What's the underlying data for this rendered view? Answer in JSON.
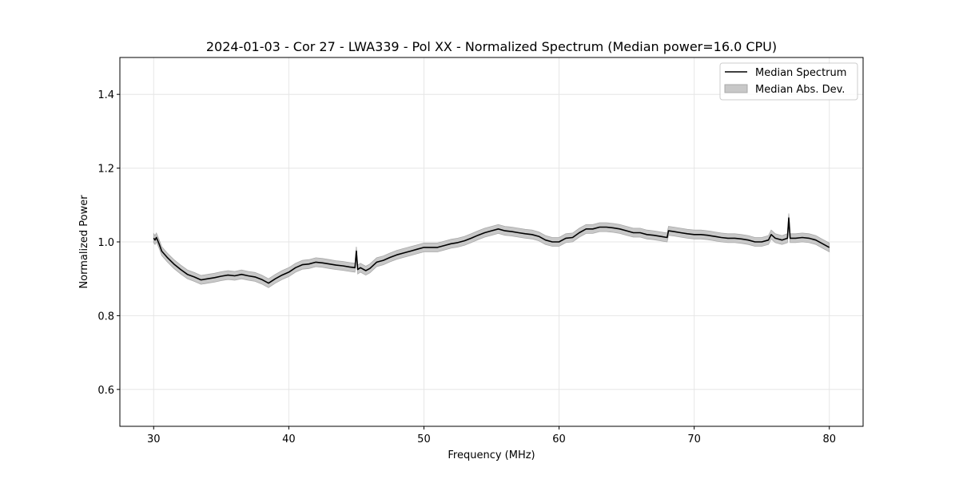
{
  "chart_data": {
    "type": "line",
    "title": "2024-01-03 - Cor 27 - LWA339 - Pol XX - Normalized Spectrum (Median power=16.0 CPU)",
    "xlabel": "Frequency (MHz)",
    "ylabel": "Normalized Power",
    "xlim": [
      27.5,
      82.5
    ],
    "ylim": [
      0.5,
      1.5
    ],
    "xticks": [
      30,
      40,
      50,
      60,
      70,
      80
    ],
    "yticks": [
      0.6,
      0.8,
      1.0,
      1.2,
      1.4
    ],
    "xtick_labels": [
      "30",
      "40",
      "50",
      "60",
      "70",
      "80"
    ],
    "ytick_labels": [
      "0.6",
      "0.8",
      "1.0",
      "1.2",
      "1.4"
    ],
    "grid": true,
    "legend_position": "top-right",
    "series": [
      {
        "name": "Median Spectrum",
        "kind": "line",
        "color": "#000000",
        "x": [
          30.0,
          30.1,
          30.2,
          30.4,
          30.6,
          31.0,
          31.5,
          32.0,
          32.5,
          33.0,
          33.5,
          34.0,
          34.5,
          35.0,
          35.5,
          36.0,
          36.5,
          37.0,
          37.5,
          38.0,
          38.5,
          39.0,
          39.5,
          40.0,
          40.5,
          41.0,
          41.5,
          42.0,
          42.5,
          43.0,
          43.5,
          44.0,
          44.5,
          44.9,
          45.0,
          45.1,
          45.3,
          45.7,
          46.0,
          46.5,
          47.0,
          47.5,
          48.0,
          48.5,
          49.0,
          49.5,
          50.0,
          50.5,
          51.0,
          51.5,
          52.0,
          52.5,
          53.0,
          53.5,
          54.0,
          54.5,
          55.0,
          55.5,
          56.0,
          56.5,
          57.0,
          57.5,
          58.0,
          58.5,
          59.0,
          59.5,
          60.0,
          60.5,
          61.0,
          61.5,
          62.0,
          62.5,
          63.0,
          63.5,
          64.0,
          64.5,
          65.0,
          65.5,
          66.0,
          66.5,
          67.0,
          67.5,
          68.0,
          68.1,
          68.5,
          69.0,
          69.5,
          70.0,
          70.5,
          71.0,
          71.5,
          72.0,
          72.5,
          73.0,
          73.5,
          74.0,
          74.5,
          75.0,
          75.5,
          75.7,
          76.0,
          76.5,
          76.9,
          77.0,
          77.1,
          77.5,
          78.0,
          78.5,
          79.0,
          79.5,
          80.0
        ],
        "y": [
          1.01,
          1.005,
          1.012,
          0.995,
          0.975,
          0.958,
          0.94,
          0.925,
          0.912,
          0.905,
          0.897,
          0.9,
          0.903,
          0.907,
          0.91,
          0.908,
          0.912,
          0.908,
          0.905,
          0.898,
          0.888,
          0.9,
          0.91,
          0.918,
          0.93,
          0.938,
          0.94,
          0.945,
          0.943,
          0.94,
          0.937,
          0.935,
          0.932,
          0.93,
          0.975,
          0.925,
          0.93,
          0.922,
          0.928,
          0.945,
          0.95,
          0.958,
          0.965,
          0.97,
          0.975,
          0.98,
          0.985,
          0.985,
          0.985,
          0.99,
          0.995,
          0.998,
          1.003,
          1.01,
          1.018,
          1.025,
          1.03,
          1.035,
          1.03,
          1.028,
          1.025,
          1.022,
          1.02,
          1.015,
          1.005,
          1.0,
          1.0,
          1.01,
          1.012,
          1.025,
          1.035,
          1.035,
          1.04,
          1.04,
          1.038,
          1.035,
          1.03,
          1.025,
          1.025,
          1.02,
          1.018,
          1.015,
          1.012,
          1.03,
          1.028,
          1.025,
          1.022,
          1.02,
          1.02,
          1.018,
          1.015,
          1.012,
          1.01,
          1.01,
          1.008,
          1.005,
          1.0,
          1.0,
          1.005,
          1.02,
          1.01,
          1.005,
          1.01,
          1.065,
          1.01,
          1.01,
          1.012,
          1.01,
          1.005,
          0.995,
          0.985
        ]
      },
      {
        "name": "Median Abs. Dev.",
        "kind": "band",
        "color": "#c8c8c8",
        "half_width": 0.012
      }
    ]
  }
}
